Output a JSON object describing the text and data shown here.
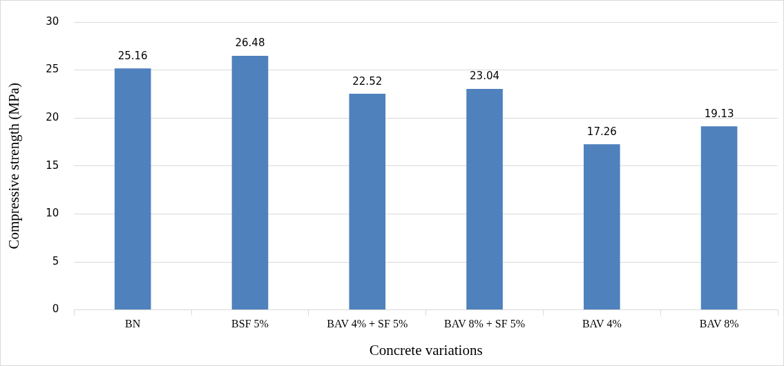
{
  "chart_data": {
    "type": "bar",
    "xlabel": "Concrete variations",
    "ylabel": "Compressive strength (MPa)",
    "categories": [
      "BN",
      "BSF 5%",
      "BAV 4% + SF 5%",
      "BAV 8% + SF 5%",
      "BAV 4%",
      "BAV 8%"
    ],
    "values": [
      25.16,
      26.48,
      22.52,
      23.04,
      17.26,
      19.13
    ],
    "color": "#4f81bd",
    "ylim": [
      0,
      30
    ],
    "yticks": [
      0,
      5,
      10,
      15,
      20,
      25,
      30
    ],
    "grid": "y",
    "data_labels": true
  }
}
